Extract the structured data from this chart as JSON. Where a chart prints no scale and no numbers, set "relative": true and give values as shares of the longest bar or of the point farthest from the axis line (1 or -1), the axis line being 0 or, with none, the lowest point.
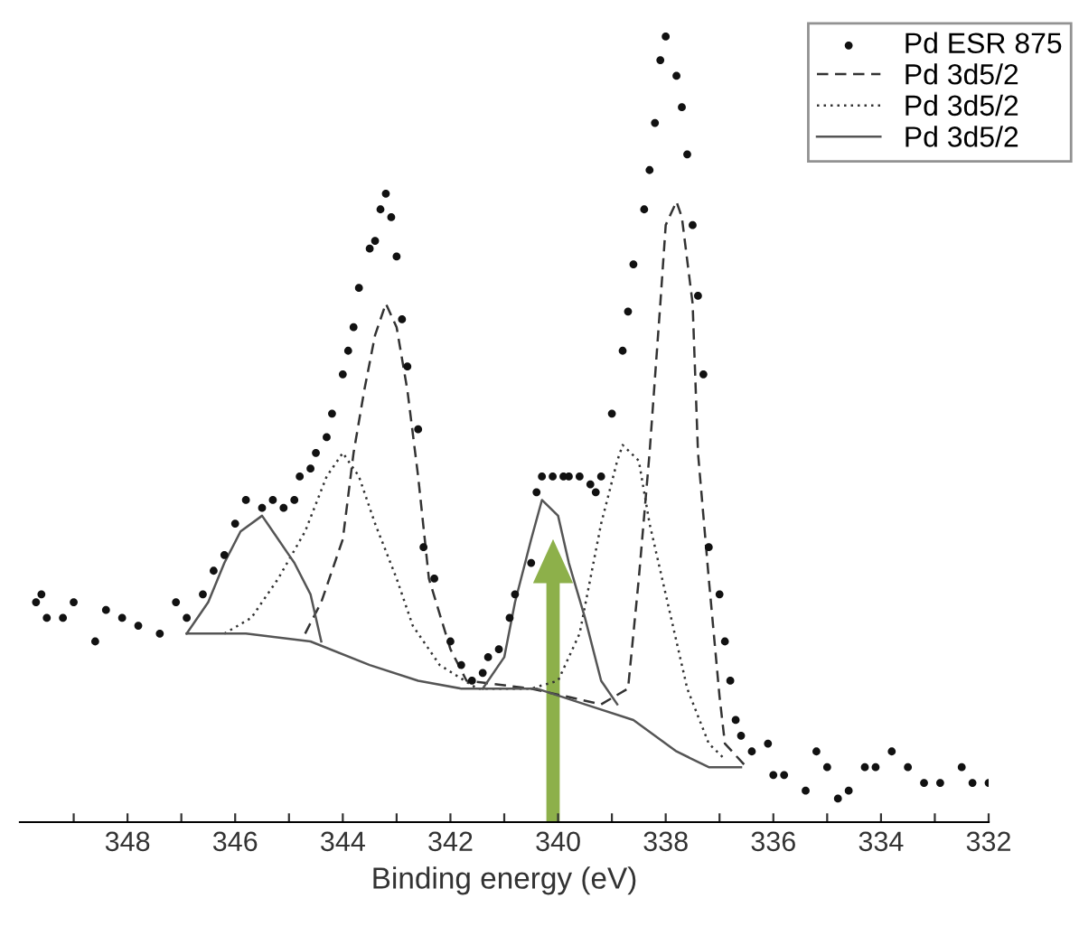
{
  "chart_data": {
    "type": "line",
    "relative": true,
    "xlabel": "Binding energy (eV)",
    "xlim": [
      350,
      332
    ],
    "xticks": [
      {
        "value": 349,
        "label": null
      },
      348,
      {
        "value": 347,
        "label": null
      },
      346,
      {
        "value": 345,
        "label": null
      },
      344,
      {
        "value": 343,
        "label": null
      },
      342,
      {
        "value": 341,
        "label": null
      },
      340,
      {
        "value": 339,
        "label": null
      },
      338,
      {
        "value": 337,
        "label": null
      },
      336,
      {
        "value": 335,
        "label": null
      },
      334,
      {
        "value": 333,
        "label": null
      },
      332
    ],
    "legend": "top right",
    "grid": false,
    "tick_labels": "x",
    "series": [
      {
        "name": "Pd ESR 875",
        "type": "scatter",
        "marker": "circle",
        "color": "#111111",
        "x": [
          349.7,
          349.6,
          349.5,
          349.2,
          349.0,
          348.6,
          348.4,
          348.1,
          347.8,
          347.4,
          347.1,
          346.9,
          346.6,
          346.4,
          346.2,
          346.0,
          345.8,
          345.5,
          345.3,
          345.1,
          344.9,
          344.8,
          344.6,
          344.5,
          344.3,
          344.2,
          344.0,
          343.9,
          343.8,
          343.7,
          343.5,
          343.4,
          343.3,
          343.2,
          343.1,
          343.0,
          342.9,
          342.8,
          342.6,
          342.5,
          342.3,
          342.0,
          341.8,
          341.6,
          341.4,
          341.3,
          341.1,
          340.9,
          340.8,
          340.5,
          340.4,
          340.3,
          340.1,
          339.9,
          339.8,
          339.6,
          339.4,
          339.3,
          339.2,
          339.0,
          338.8,
          338.7,
          338.6,
          338.4,
          338.3,
          338.2,
          338.1,
          338.0,
          337.8,
          337.7,
          337.6,
          337.5,
          337.4,
          337.3,
          337.2,
          337.0,
          336.9,
          336.8,
          336.7,
          336.6,
          336.4,
          336.1,
          336.0,
          335.8,
          335.4,
          335.2,
          335.0,
          334.8,
          334.6,
          334.3,
          334.1,
          333.8,
          333.5,
          333.2,
          332.9,
          332.5,
          332.3,
          332.0
        ],
        "values": [
          0.28,
          0.29,
          0.26,
          0.26,
          0.28,
          0.23,
          0.27,
          0.26,
          0.25,
          0.24,
          0.28,
          0.26,
          0.29,
          0.32,
          0.34,
          0.38,
          0.41,
          0.4,
          0.41,
          0.4,
          0.41,
          0.44,
          0.45,
          0.47,
          0.49,
          0.52,
          0.57,
          0.6,
          0.63,
          0.68,
          0.73,
          0.74,
          0.78,
          0.8,
          0.77,
          0.72,
          0.64,
          0.58,
          0.5,
          0.35,
          0.31,
          0.23,
          0.2,
          0.18,
          0.19,
          0.21,
          0.22,
          0.26,
          0.29,
          0.33,
          0.42,
          0.44,
          0.44,
          0.44,
          0.44,
          0.44,
          0.43,
          0.42,
          0.44,
          0.52,
          0.6,
          0.65,
          0.71,
          0.78,
          0.83,
          0.89,
          0.97,
          1.0,
          0.95,
          0.91,
          0.85,
          0.76,
          0.67,
          0.57,
          0.35,
          0.29,
          0.23,
          0.18,
          0.13,
          0.11,
          0.09,
          0.1,
          0.06,
          0.06,
          0.04,
          0.09,
          0.07,
          0.03,
          0.04,
          0.07,
          0.07,
          0.09,
          0.07,
          0.05,
          0.05,
          0.07,
          0.05,
          0.05
        ]
      },
      {
        "name": "Pd 3d5/2",
        "line_style": "dashed",
        "color": "#333333",
        "x": [
          344.7,
          344.4,
          344.0,
          343.8,
          343.6,
          343.4,
          343.2,
          343.0,
          342.8,
          342.6,
          342.4,
          342.0,
          341.7,
          340.5,
          339.2,
          338.7,
          338.5,
          338.3,
          338.1,
          338.0,
          337.8,
          337.7,
          337.5,
          337.4,
          337.2,
          337.0,
          336.9,
          336.5
        ],
        "values": [
          0.24,
          0.28,
          0.36,
          0.47,
          0.55,
          0.62,
          0.66,
          0.63,
          0.55,
          0.44,
          0.31,
          0.22,
          0.18,
          0.17,
          0.15,
          0.17,
          0.31,
          0.47,
          0.66,
          0.76,
          0.79,
          0.77,
          0.66,
          0.47,
          0.31,
          0.16,
          0.1,
          0.07
        ]
      },
      {
        "name": "Pd 3d5/2",
        "line_style": "dotted",
        "color": "#333333",
        "x": [
          346.2,
          345.7,
          345.2,
          344.7,
          344.3,
          344.0,
          343.7,
          343.4,
          343.0,
          342.7,
          342.2,
          341.5,
          340.5,
          340.0,
          339.6,
          339.2,
          338.9,
          338.8,
          338.5,
          338.3,
          337.9,
          337.6,
          337.2,
          336.9
        ],
        "values": [
          0.24,
          0.26,
          0.31,
          0.37,
          0.44,
          0.47,
          0.44,
          0.38,
          0.31,
          0.25,
          0.2,
          0.17,
          0.17,
          0.18,
          0.24,
          0.38,
          0.46,
          0.48,
          0.46,
          0.38,
          0.26,
          0.17,
          0.1,
          0.08
        ]
      },
      {
        "name": "Pd 3d5/2",
        "line_style": "solid",
        "color": "#555555",
        "x": [
          346.9,
          345.8,
          344.6,
          343.5,
          342.6,
          341.8,
          340.9,
          340.4,
          339.5,
          338.6,
          337.8,
          337.2,
          336.6
        ],
        "values": [
          0.24,
          0.24,
          0.23,
          0.2,
          0.18,
          0.17,
          0.17,
          0.17,
          0.15,
          0.13,
          0.09,
          0.07,
          0.07
        ]
      },
      {
        "line_style": "solid",
        "color": "#555555",
        "x": [
          346.9,
          346.5,
          346.2,
          345.9,
          345.5,
          345.3,
          345.0,
          344.9,
          344.6,
          344.4
        ],
        "values": [
          0.24,
          0.28,
          0.33,
          0.37,
          0.39,
          0.37,
          0.34,
          0.33,
          0.29,
          0.23
        ]
      },
      {
        "line_style": "solid",
        "color": "#555555",
        "x": [
          341.4,
          341.0,
          340.8,
          340.5,
          340.3,
          340.0,
          339.8,
          339.5,
          339.2,
          338.9
        ],
        "values": [
          0.17,
          0.21,
          0.28,
          0.36,
          0.41,
          0.39,
          0.33,
          0.26,
          0.18,
          0.15
        ]
      }
    ]
  }
}
